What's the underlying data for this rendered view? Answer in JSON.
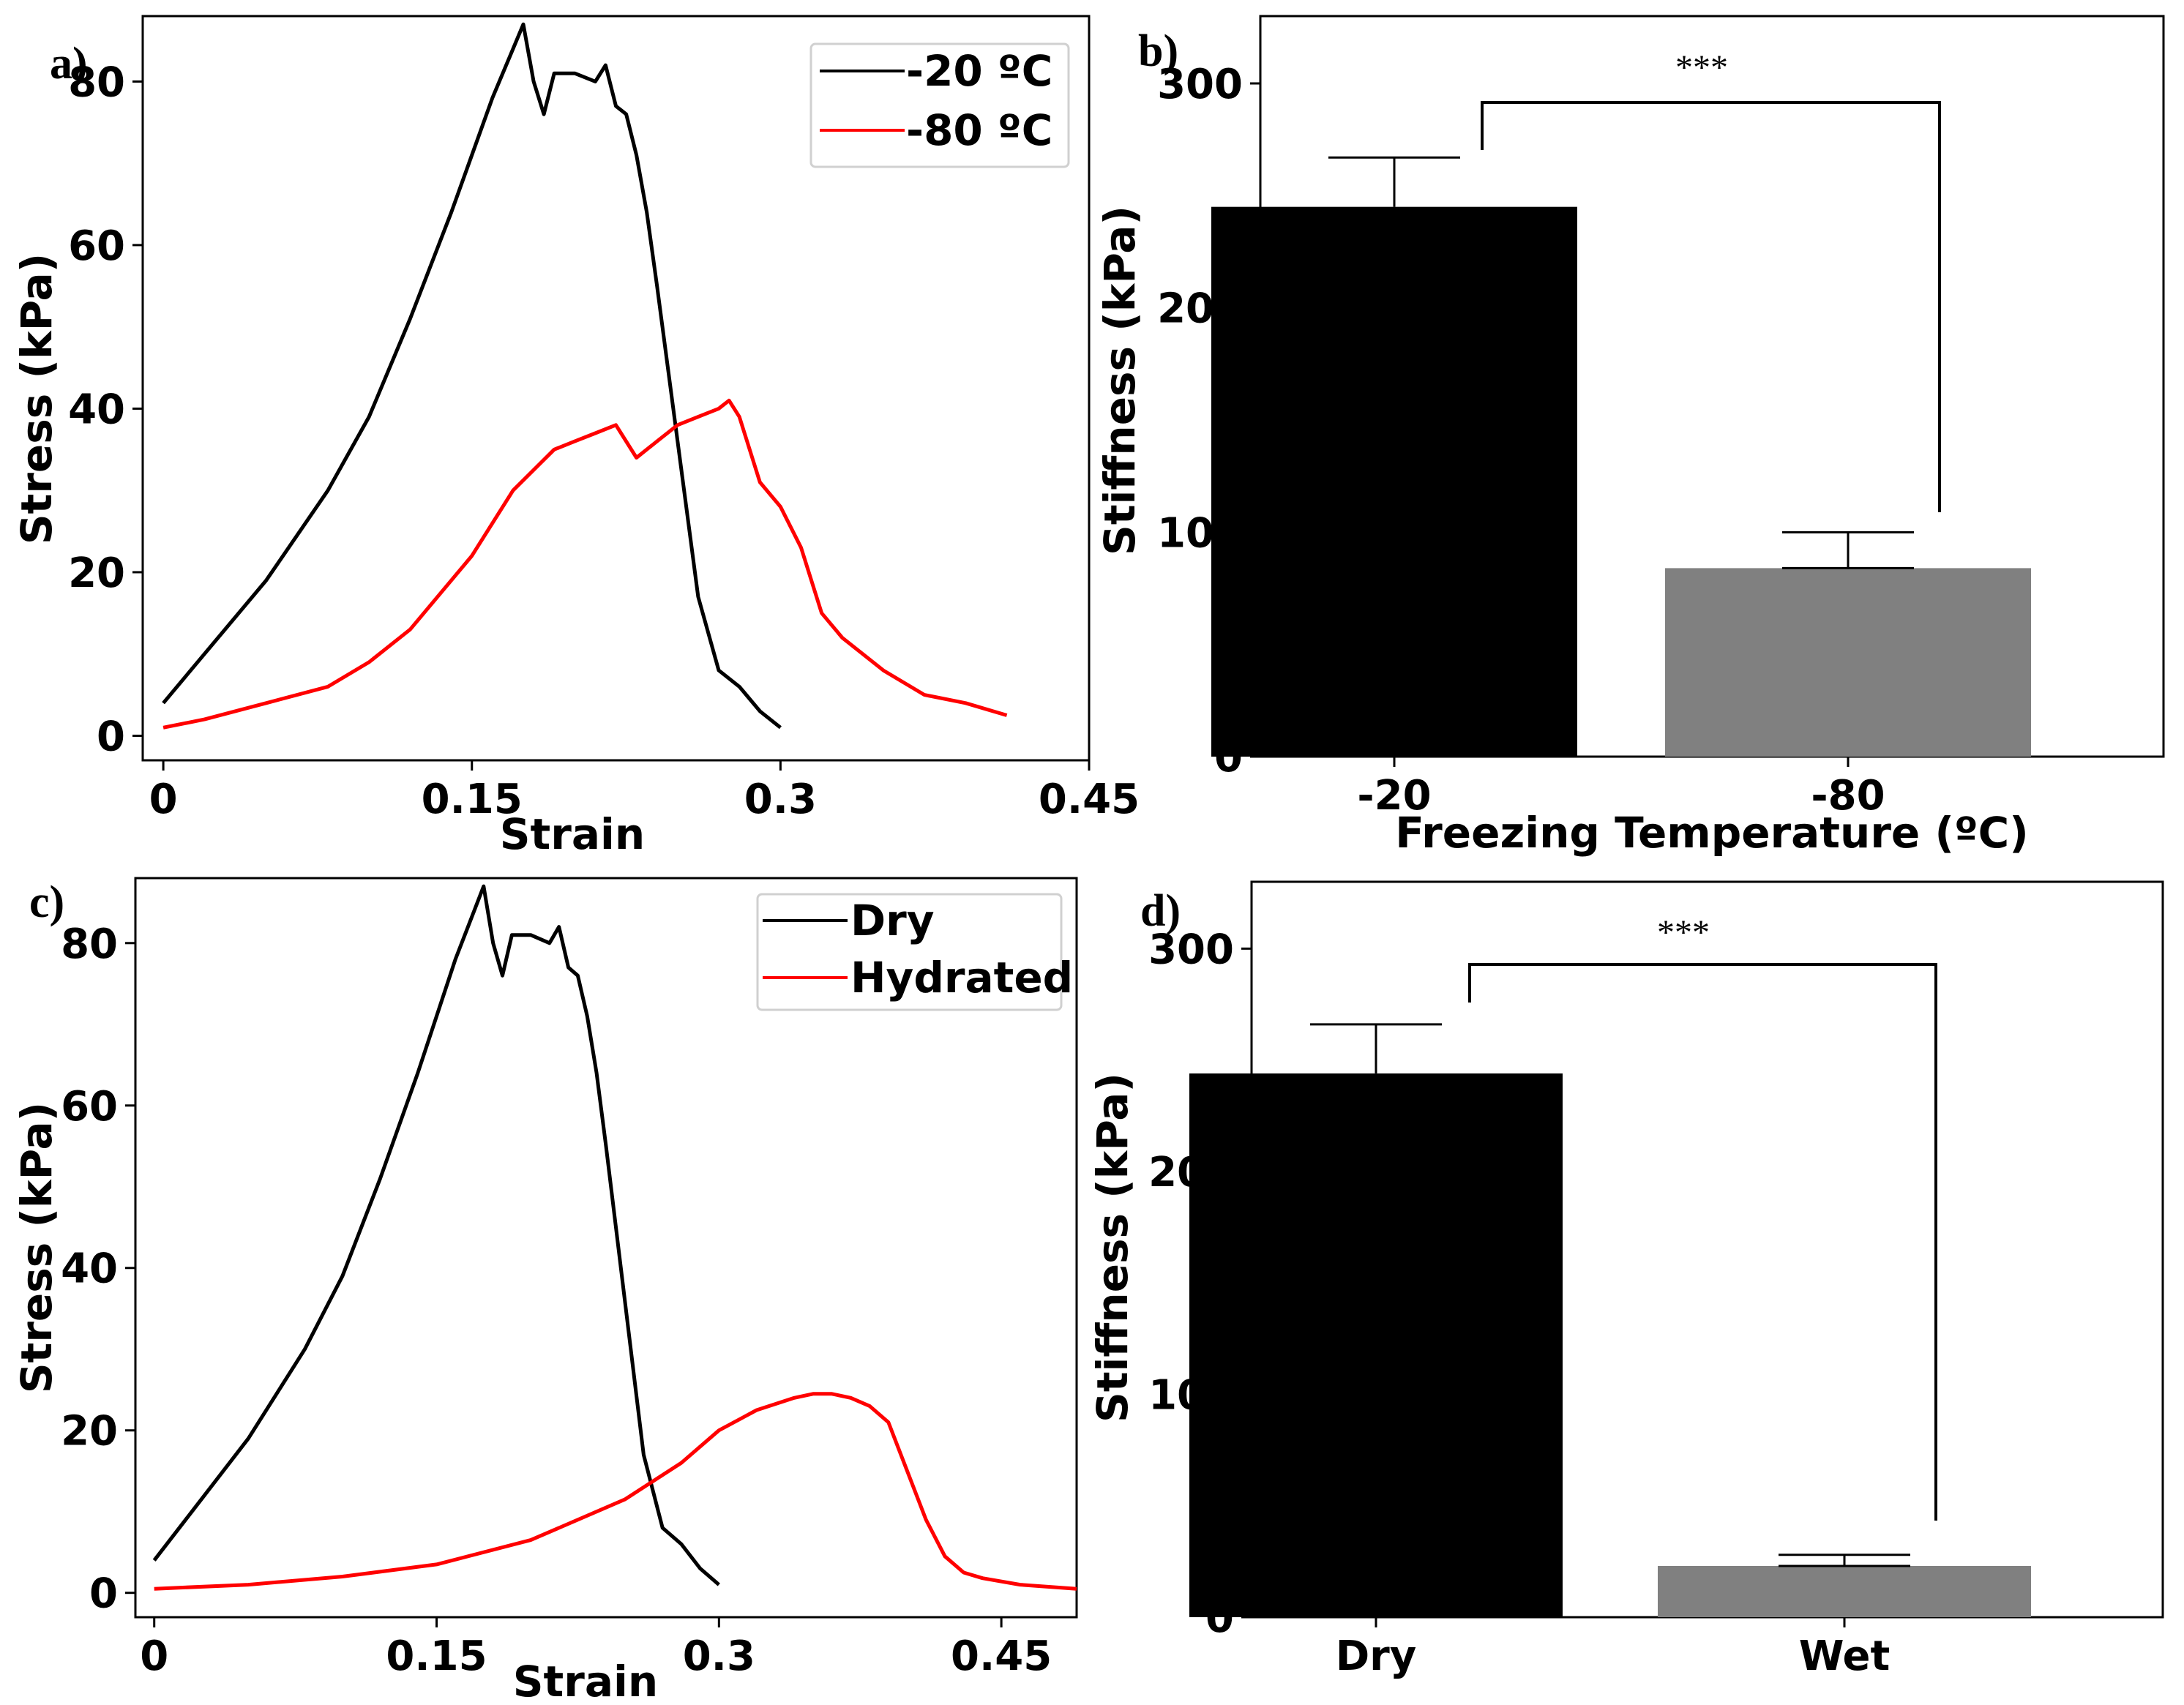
{
  "chart_data": [
    {
      "panel": "a)",
      "type": "line",
      "xlabel": "Strain",
      "ylabel": "Stress (kPa)",
      "xlim": [
        -0.01,
        0.45
      ],
      "ylim": [
        -3,
        88
      ],
      "xticks": [
        "0",
        "0.15",
        "0.3",
        "0.45"
      ],
      "yticks": [
        "0",
        "20",
        "40",
        "60",
        "80"
      ],
      "legend_position": "top-right",
      "series": [
        {
          "name": "-20 ºC",
          "color": "#000000",
          "x": [
            0.0,
            0.02,
            0.05,
            0.08,
            0.1,
            0.12,
            0.14,
            0.15,
            0.16,
            0.17,
            0.175,
            0.18,
            0.185,
            0.19,
            0.2,
            0.21,
            0.215,
            0.22,
            0.225,
            0.23,
            0.235,
            0.24,
            0.25,
            0.26,
            0.27,
            0.28,
            0.29,
            0.3
          ],
          "y": [
            4,
            10,
            19,
            30,
            39,
            51,
            64,
            71,
            78,
            84,
            87,
            80,
            76,
            81,
            81,
            80,
            82,
            77,
            76,
            71,
            64,
            55,
            36,
            17,
            8,
            6,
            3,
            1
          ]
        },
        {
          "name": "-80 ºC",
          "color": "#ff0000",
          "x": [
            0.0,
            0.02,
            0.05,
            0.08,
            0.1,
            0.12,
            0.15,
            0.17,
            0.19,
            0.2,
            0.21,
            0.22,
            0.23,
            0.24,
            0.25,
            0.26,
            0.27,
            0.275,
            0.28,
            0.29,
            0.3,
            0.31,
            0.32,
            0.33,
            0.35,
            0.37,
            0.39,
            0.41
          ],
          "y": [
            1,
            2,
            4,
            6,
            9,
            13,
            22,
            30,
            35,
            36,
            37,
            38,
            34,
            36,
            38,
            39,
            40,
            41,
            39,
            31,
            28,
            23,
            15,
            12,
            8,
            5,
            4,
            2.5
          ]
        }
      ]
    },
    {
      "panel": "b)",
      "type": "bar",
      "xlabel": "Freezing Temperature (ºC)",
      "ylabel": "Stiffness (kPa)",
      "ylim": [
        0,
        330
      ],
      "yticks": [
        "0",
        "100",
        "200",
        "300"
      ],
      "categories": [
        "-20",
        "-80"
      ],
      "values": [
        245,
        84
      ],
      "errors": [
        22,
        16
      ],
      "colors": [
        "#000000",
        "#808080"
      ],
      "significance": "***"
    },
    {
      "panel": "c)",
      "type": "line",
      "xlabel": "Strain",
      "ylabel": "Stress (kPa)",
      "xlim": [
        -0.01,
        0.49
      ],
      "ylim": [
        -3,
        88
      ],
      "xticks": [
        "0",
        "0.15",
        "0.3",
        "0.45"
      ],
      "yticks": [
        "0",
        "20",
        "40",
        "60",
        "80"
      ],
      "legend_position": "top-right",
      "series": [
        {
          "name": "Dry",
          "color": "#000000",
          "x": [
            0.0,
            0.02,
            0.05,
            0.08,
            0.1,
            0.12,
            0.14,
            0.15,
            0.16,
            0.17,
            0.175,
            0.18,
            0.185,
            0.19,
            0.2,
            0.21,
            0.215,
            0.22,
            0.225,
            0.23,
            0.235,
            0.24,
            0.25,
            0.26,
            0.27,
            0.28,
            0.29,
            0.3
          ],
          "y": [
            4,
            10,
            19,
            30,
            39,
            51,
            64,
            71,
            78,
            84,
            87,
            80,
            76,
            81,
            81,
            80,
            82,
            77,
            76,
            71,
            64,
            55,
            36,
            17,
            8,
            6,
            3,
            1
          ]
        },
        {
          "name": "Hydrated",
          "color": "#ff0000",
          "x": [
            0.0,
            0.05,
            0.1,
            0.15,
            0.2,
            0.25,
            0.28,
            0.3,
            0.32,
            0.34,
            0.35,
            0.36,
            0.37,
            0.38,
            0.39,
            0.4,
            0.41,
            0.42,
            0.43,
            0.44,
            0.46,
            0.49
          ],
          "y": [
            0.5,
            1,
            2,
            3.5,
            6.5,
            11.5,
            16,
            20,
            22.5,
            24,
            24.5,
            24.5,
            24,
            23,
            21,
            15,
            9,
            4.5,
            2.5,
            1.8,
            1,
            0.5
          ]
        }
      ]
    },
    {
      "panel": "d)",
      "type": "bar",
      "xlabel": "",
      "ylabel": "Stiffness (kPa)",
      "ylim": [
        0,
        330
      ],
      "yticks": [
        "0",
        "100",
        "200",
        "300"
      ],
      "categories": [
        "Dry",
        "Wet"
      ],
      "values": [
        244,
        23
      ],
      "errors": [
        22,
        5
      ],
      "colors": [
        "#000000",
        "#808080"
      ],
      "significance": "***"
    }
  ]
}
